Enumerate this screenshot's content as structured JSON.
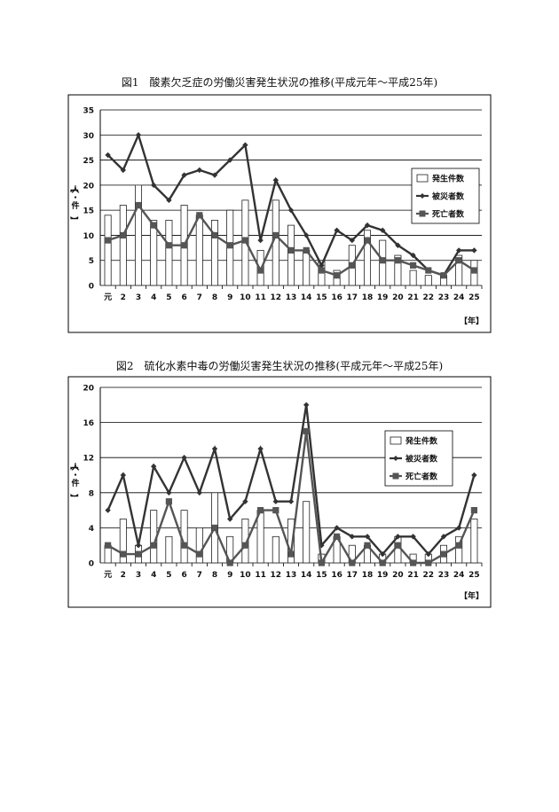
{
  "page": {
    "figure1_title": "図1　酸素欠乏症の労働災害発生状況の推移(平成元年〜平成25年)",
    "figure2_title": "図2　硫化水素中毒の労働災害発生状況の推移(平成元年〜平成25年)"
  },
  "chart_data": [
    {
      "type": "bar",
      "title": "図1　酸素欠乏症の労働災害発生状況の推移(平成元年〜平成25年)",
      "categories": [
        "元",
        "2",
        "3",
        "4",
        "5",
        "6",
        "7",
        "8",
        "9",
        "10",
        "11",
        "12",
        "13",
        "14",
        "15",
        "16",
        "17",
        "18",
        "19",
        "20",
        "21",
        "22",
        "23",
        "24",
        "25"
      ],
      "ylabel": "【人・件】",
      "xlabel": "【年】",
      "ylim": [
        0,
        35
      ],
      "yticks": [
        0,
        5,
        10,
        15,
        20,
        25,
        30,
        35
      ],
      "grid": true,
      "legend": "right",
      "series": [
        {
          "name": "発生件数",
          "kind": "bar",
          "color": "#ffffff",
          "values": [
            14,
            16,
            20,
            13,
            13,
            16,
            14,
            13,
            15,
            17,
            7,
            17,
            12,
            7,
            5,
            3,
            8,
            11,
            9,
            6,
            3,
            2,
            2,
            6,
            5
          ]
        },
        {
          "name": "被災者数",
          "kind": "line",
          "marker": "diamond",
          "color": "#333333",
          "values": [
            26,
            23,
            30,
            20,
            17,
            22,
            23,
            22,
            25,
            28,
            9,
            21,
            15,
            10,
            4,
            11,
            9,
            12,
            11,
            8,
            6,
            3,
            2,
            7,
            7
          ]
        },
        {
          "name": "死亡者数",
          "kind": "line",
          "marker": "square",
          "color": "#555555",
          "values": [
            9,
            10,
            16,
            12,
            8,
            8,
            14,
            10,
            8,
            9,
            3,
            10,
            7,
            7,
            3,
            2,
            4,
            9,
            5,
            5,
            4,
            3,
            2,
            5,
            3
          ]
        }
      ]
    },
    {
      "type": "bar",
      "title": "図2　硫化水素中毒の労働災害発生状況の推移(平成元年〜平成25年)",
      "categories": [
        "元",
        "2",
        "3",
        "4",
        "5",
        "6",
        "7",
        "8",
        "9",
        "10",
        "11",
        "12",
        "13",
        "14",
        "15",
        "16",
        "17",
        "18",
        "19",
        "20",
        "21",
        "22",
        "23",
        "24",
        "25"
      ],
      "ylabel": "【人・件】",
      "xlabel": "【年】",
      "ylim": [
        0,
        20
      ],
      "yticks": [
        0,
        4,
        8,
        12,
        16,
        20
      ],
      "grid": true,
      "legend": "right",
      "series": [
        {
          "name": "発生件数",
          "kind": "bar",
          "color": "#ffffff",
          "values": [
            2,
            5,
            2,
            6,
            3,
            6,
            4,
            8,
            3,
            5,
            6,
            3,
            5,
            7,
            1,
            3,
            2,
            2,
            1,
            3,
            1,
            1,
            2,
            3,
            5
          ]
        },
        {
          "name": "被災者数",
          "kind": "line",
          "marker": "diamond",
          "color": "#333333",
          "values": [
            6,
            10,
            2,
            11,
            8,
            12,
            8,
            13,
            5,
            7,
            13,
            7,
            7,
            18,
            2,
            4,
            3,
            3,
            1,
            3,
            3,
            1,
            3,
            4,
            10
          ]
        },
        {
          "name": "死亡者数",
          "kind": "line",
          "marker": "square",
          "color": "#555555",
          "values": [
            2,
            1,
            1,
            2,
            7,
            2,
            1,
            4,
            0,
            2,
            6,
            6,
            1,
            15,
            0,
            3,
            0,
            2,
            0,
            2,
            0,
            0,
            1,
            2,
            6
          ]
        }
      ]
    }
  ]
}
